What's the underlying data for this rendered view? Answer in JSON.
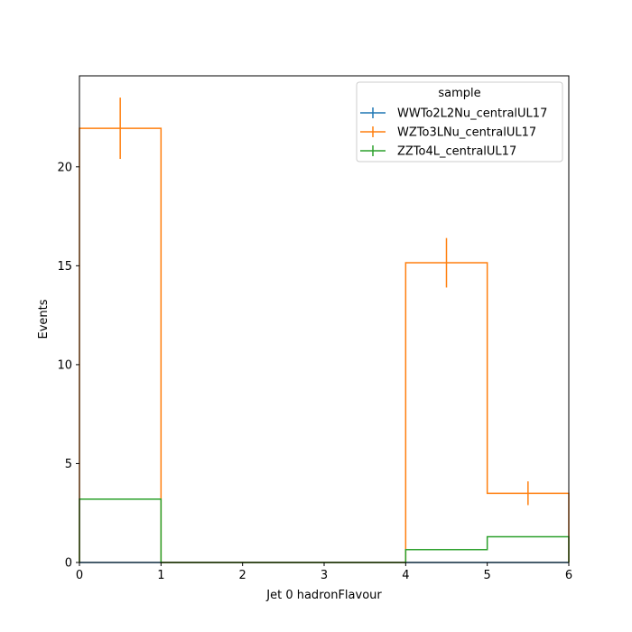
{
  "chart_data": {
    "type": "step-histogram",
    "xlabel": "Jet 0 hadronFlavour",
    "ylabel": "Events",
    "xlim": [
      0,
      6
    ],
    "ylim": [
      0,
      24.6
    ],
    "xticks": [
      0,
      1,
      2,
      3,
      4,
      5,
      6
    ],
    "yticks": [
      0,
      5,
      10,
      15,
      20
    ],
    "bin_edges": [
      0,
      1,
      2,
      3,
      4,
      5,
      6
    ],
    "grid": false,
    "legend": {
      "title": "sample",
      "placement": "top-right"
    },
    "series": [
      {
        "name": "WWTo2L2Nu_centralUL17",
        "color": "#1f77b4",
        "values": [
          0,
          0,
          0,
          0,
          0,
          0
        ],
        "errors": [
          0,
          0,
          0,
          0,
          0,
          0
        ]
      },
      {
        "name": "WZTo3LNu_centralUL17",
        "color": "#ff7f0e",
        "values": [
          21.95,
          0,
          0,
          0,
          15.15,
          3.5
        ],
        "errors": [
          1.55,
          0,
          0,
          0,
          1.25,
          0.6
        ]
      },
      {
        "name": "ZZTo4L_centralUL17",
        "color": "#2ca02c",
        "values": [
          3.2,
          0,
          0,
          0,
          0.65,
          1.3
        ],
        "errors": [
          0,
          0,
          0,
          0,
          0,
          0
        ]
      }
    ]
  }
}
